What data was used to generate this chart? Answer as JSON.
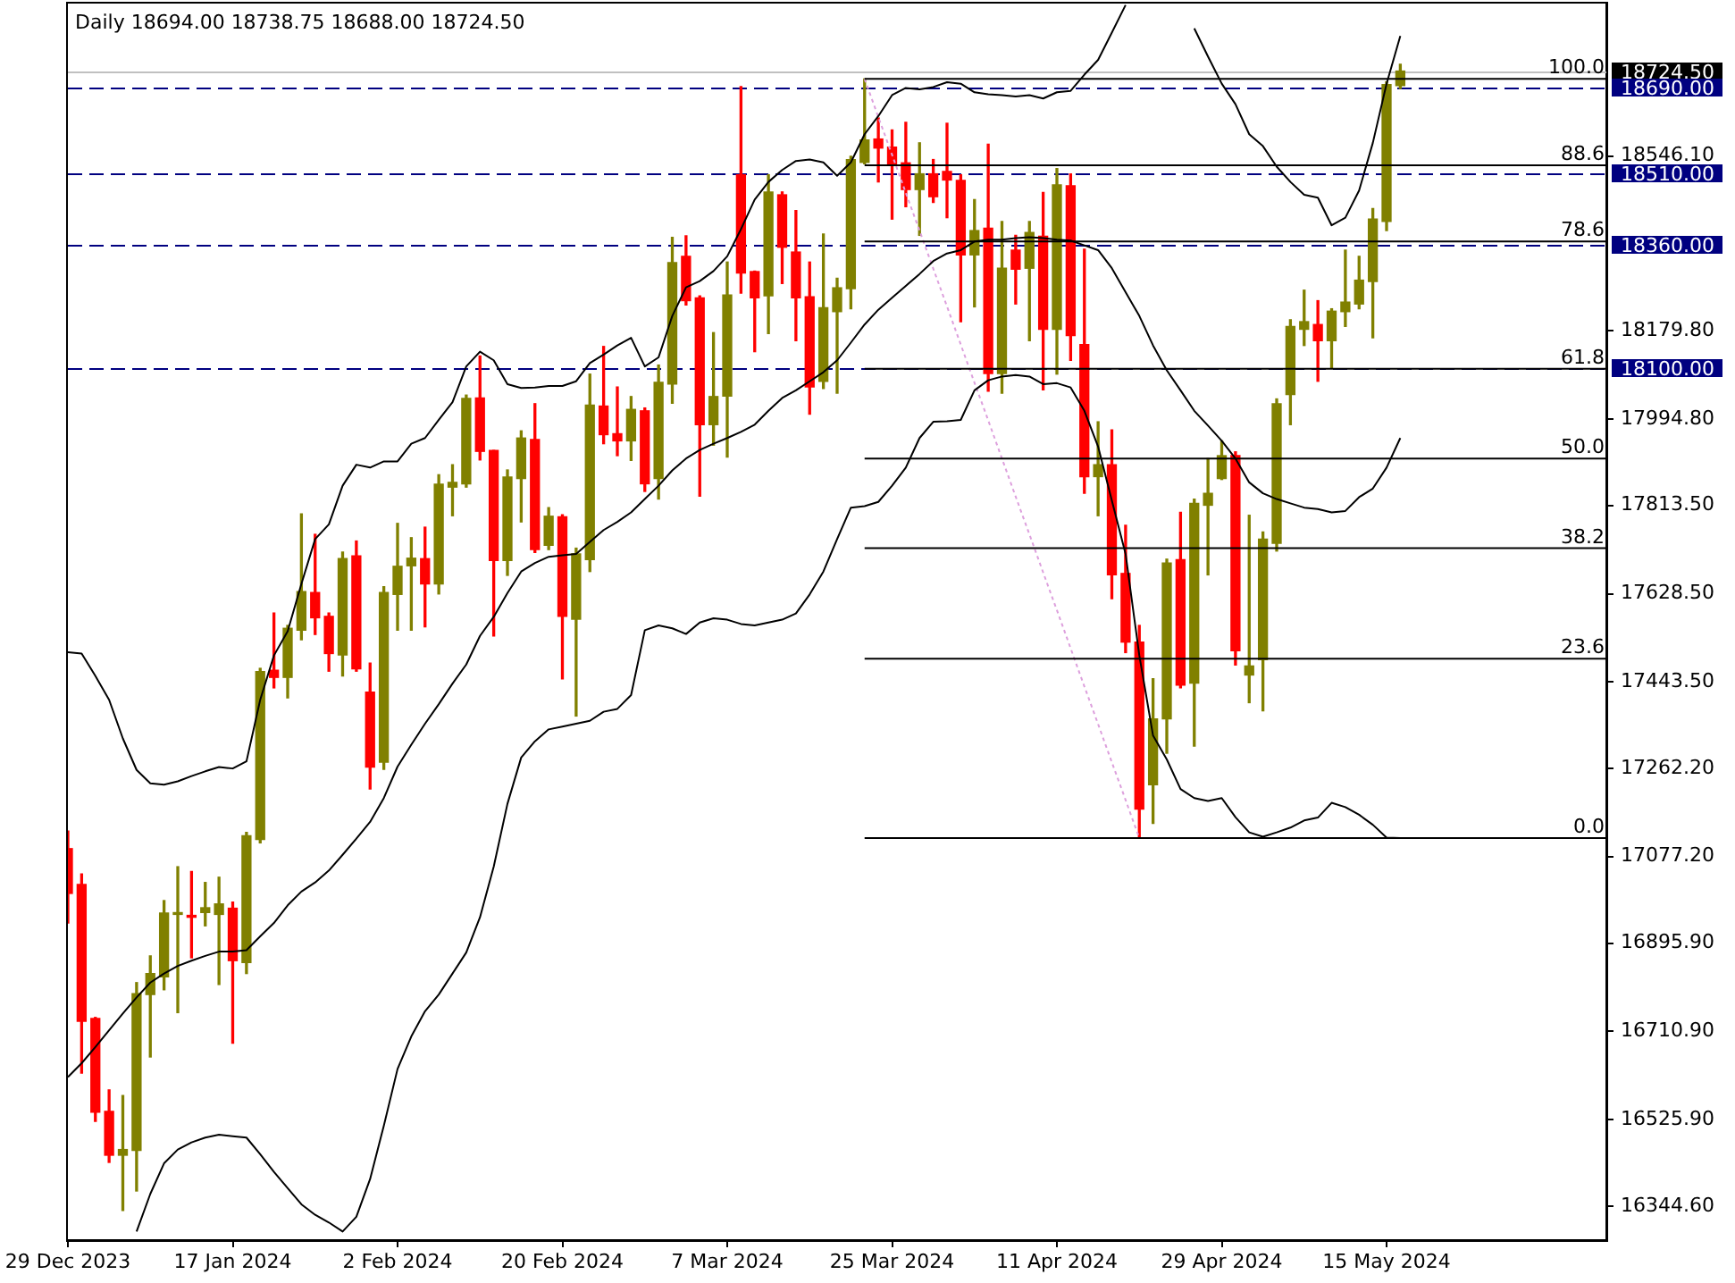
{
  "chart_data": {
    "type": "candlestick",
    "title": "Daily 18694.00 18738.75 18688.00 18724.50",
    "categories": [
      "29 Dec 2023",
      null,
      null,
      null,
      null,
      null,
      null,
      null,
      null,
      null,
      null,
      null,
      "17 Jan 2024",
      null,
      null,
      null,
      null,
      null,
      null,
      null,
      null,
      null,
      null,
      null,
      "2 Feb 2024",
      null,
      null,
      null,
      null,
      null,
      null,
      null,
      null,
      null,
      null,
      null,
      "20 Feb 2024",
      null,
      null,
      null,
      null,
      null,
      null,
      null,
      null,
      null,
      null,
      null,
      "7 Mar 2024",
      null,
      null,
      null,
      null,
      null,
      null,
      null,
      null,
      null,
      null,
      null,
      "25 Mar 2024",
      null,
      null,
      null,
      null,
      null,
      null,
      null,
      null,
      null,
      null,
      null,
      "11 Apr 2024",
      null,
      null,
      null,
      null,
      null,
      null,
      null,
      null,
      null,
      null,
      null,
      "29 Apr 2024",
      null,
      null,
      null,
      null,
      null,
      null,
      null,
      null,
      null,
      null,
      null,
      "15 May 2024",
      null,
      null,
      null,
      null,
      null,
      null,
      null,
      null,
      null,
      null,
      null,
      null,
      null,
      null,
      null,
      null
    ],
    "ohlc": [
      [
        17094,
        17131,
        16938,
        17000
      ],
      [
        17019,
        17041,
        16623,
        16732
      ],
      [
        16738,
        16740,
        16522,
        16541
      ],
      [
        16543,
        16588,
        16436,
        16451
      ],
      [
        16451,
        16576,
        16335,
        16463
      ],
      [
        16461,
        16813,
        16376,
        16790
      ],
      [
        16788,
        16869,
        16657,
        16832
      ],
      [
        16825,
        16985,
        16798,
        16959
      ],
      [
        16956,
        17056,
        16750,
        16959
      ],
      [
        16954,
        17046,
        16865,
        16950
      ],
      [
        16960,
        17023,
        16932,
        16970
      ],
      [
        16956,
        17034,
        16809,
        16978
      ],
      [
        16969,
        16982,
        16686,
        16859
      ],
      [
        16855,
        17128,
        16832,
        17121
      ],
      [
        17113,
        17472,
        17106,
        17465
      ],
      [
        17468,
        17588,
        17431,
        17453
      ],
      [
        17453,
        17562,
        17410,
        17556
      ],
      [
        17552,
        17796,
        17532,
        17633
      ],
      [
        17631,
        17753,
        17543,
        17578
      ],
      [
        17581,
        17588,
        17466,
        17503
      ],
      [
        17500,
        17716,
        17456,
        17702
      ],
      [
        17708,
        17739,
        17466,
        17471
      ],
      [
        17422,
        17483,
        17219,
        17265
      ],
      [
        17275,
        17643,
        17260,
        17631
      ],
      [
        17627,
        17776,
        17552,
        17686
      ],
      [
        17687,
        17746,
        17552,
        17703
      ],
      [
        17702,
        17768,
        17559,
        17649
      ],
      [
        17649,
        17878,
        17628,
        17858
      ],
      [
        17852,
        17899,
        17792,
        17862
      ],
      [
        17859,
        18045,
        17852,
        18038
      ],
      [
        18039,
        18127,
        17909,
        17927
      ],
      [
        17929,
        17929,
        17540,
        17698
      ],
      [
        17698,
        17888,
        17667,
        17873
      ],
      [
        17870,
        17970,
        17779,
        17955
      ],
      [
        17952,
        18027,
        17715,
        17721
      ],
      [
        17730,
        17809,
        17721,
        17791
      ],
      [
        17790,
        17794,
        17450,
        17581
      ],
      [
        17575,
        17724,
        17372,
        17712
      ],
      [
        17700,
        18089,
        17675,
        18024
      ],
      [
        18022,
        18147,
        17943,
        17962
      ],
      [
        17964,
        18062,
        17918,
        17949
      ],
      [
        17949,
        18042,
        17908,
        18015
      ],
      [
        18012,
        18018,
        17843,
        17859
      ],
      [
        17870,
        18108,
        17827,
        18072
      ],
      [
        18068,
        18376,
        18028,
        18323
      ],
      [
        18336,
        18379,
        18234,
        18243
      ],
      [
        18249,
        18253,
        17833,
        17983
      ],
      [
        17983,
        18176,
        17940,
        18042
      ],
      [
        18043,
        18324,
        17915,
        18255
      ],
      [
        18507,
        18692,
        18259,
        18301
      ],
      [
        18304,
        18305,
        18136,
        18249
      ],
      [
        18253,
        18507,
        18174,
        18471
      ],
      [
        18465,
        18471,
        18279,
        18355
      ],
      [
        18345,
        18432,
        18159,
        18249
      ],
      [
        18251,
        18324,
        18005,
        18062
      ],
      [
        18074,
        18383,
        18059,
        18228
      ],
      [
        18220,
        18290,
        18049,
        18270
      ],
      [
        18268,
        18546,
        18226,
        18539
      ],
      [
        18533,
        18708,
        18530,
        18580
      ],
      [
        18582,
        18626,
        18492,
        18563
      ],
      [
        18565,
        18601,
        18414,
        18529
      ],
      [
        18532,
        18617,
        18440,
        18476
      ],
      [
        18476,
        18574,
        18380,
        18509
      ],
      [
        18509,
        18539,
        18449,
        18461
      ],
      [
        18514,
        18615,
        18417,
        18496
      ],
      [
        18495,
        18507,
        18199,
        18339
      ],
      [
        18339,
        18455,
        18230,
        18390
      ],
      [
        18395,
        18571,
        18053,
        18090
      ],
      [
        18090,
        18409,
        18049,
        18311
      ],
      [
        18349,
        18380,
        18236,
        18309
      ],
      [
        18311,
        18409,
        18159,
        18386
      ],
      [
        18378,
        18470,
        18056,
        18183
      ],
      [
        18183,
        18520,
        18089,
        18486
      ],
      [
        18484,
        18509,
        18118,
        18170
      ],
      [
        18151,
        18351,
        17839,
        17874
      ],
      [
        17874,
        17989,
        17792,
        17899
      ],
      [
        17899,
        17972,
        17618,
        17668
      ],
      [
        17671,
        17772,
        17505,
        17527
      ],
      [
        17527,
        17562,
        17116,
        17177
      ],
      [
        17228,
        17450,
        17147,
        17366
      ],
      [
        17366,
        17701,
        17294,
        17693
      ],
      [
        17700,
        17799,
        17431,
        17437
      ],
      [
        17441,
        17827,
        17309,
        17818
      ],
      [
        17814,
        17912,
        17668,
        17839
      ],
      [
        17870,
        17949,
        17868,
        17918
      ],
      [
        17918,
        17926,
        17479,
        17509
      ],
      [
        17458,
        17793,
        17400,
        17477
      ],
      [
        17490,
        17758,
        17383,
        17743
      ],
      [
        17734,
        18037,
        17718,
        18027
      ],
      [
        18046,
        18203,
        17983,
        18189
      ],
      [
        18183,
        18265,
        18149,
        18199
      ],
      [
        18193,
        18243,
        18074,
        18159
      ],
      [
        18159,
        18226,
        18102,
        18221
      ],
      [
        18220,
        18349,
        18189,
        18240
      ],
      [
        18236,
        18336,
        18226,
        18286
      ],
      [
        18283,
        18436,
        18165,
        18414
      ],
      [
        18409,
        18702,
        18390,
        18696
      ],
      [
        18694,
        18738.75,
        18688,
        18724.5
      ],
      null,
      null,
      null,
      null,
      null,
      null,
      null,
      null,
      null,
      null,
      null,
      null,
      null,
      null,
      null
    ],
    "colors": [
      "#ff0000",
      "#ff0000",
      "#ff0000",
      "#ff0000",
      "#808000",
      "#808000",
      "#808000",
      "#808000",
      "#808000",
      "#ff0000",
      "#808000",
      "#808000",
      "#ff0000",
      "#808000",
      "#808000",
      "#ff0000",
      "#808000",
      "#808000",
      "#ff0000",
      "#ff0000",
      "#808000",
      "#ff0000",
      "#ff0000",
      "#808000",
      "#808000",
      "#808000",
      "#ff0000",
      "#808000",
      "#808000",
      "#808000",
      "#ff0000",
      "#ff0000",
      "#808000",
      "#808000",
      "#ff0000",
      "#808000",
      "#ff0000",
      "#808000",
      "#808000",
      "#ff0000",
      "#ff0000",
      "#808000",
      "#ff0000",
      "#808000",
      "#808000",
      "#ff0000",
      "#ff0000",
      "#808000",
      "#808000",
      "#ff0000",
      "#ff0000",
      "#808000",
      "#ff0000",
      "#ff0000",
      "#ff0000",
      "#808000",
      "#808000",
      "#808000",
      "#808000",
      "#ff0000",
      "#ff0000",
      "#ff0000",
      "#808000",
      "#ff0000",
      "#ff0000",
      "#ff0000",
      "#808000",
      "#ff0000",
      "#808000",
      "#ff0000",
      "#808000",
      "#ff0000",
      "#808000",
      "#ff0000",
      "#ff0000",
      "#808000",
      "#ff0000",
      "#ff0000",
      "#ff0000",
      "#808000",
      "#808000",
      "#ff0000",
      "#808000",
      "#808000",
      "#808000",
      "#ff0000",
      "#808000",
      "#808000",
      "#808000",
      "#808000",
      "#808000",
      "#ff0000",
      "#808000",
      "#808000",
      "#808000",
      "#808000",
      "#808000",
      "#808000",
      null,
      null,
      null,
      null,
      null,
      null,
      null,
      null,
      null,
      null,
      null,
      null,
      null,
      null,
      null
    ],
    "series": [
      {
        "type": "line",
        "color": "#000000",
        "values": [
          17506,
          17503,
          17456,
          17406,
          17325,
          17259,
          17231,
          17228,
          17235,
          17246,
          17256,
          17265,
          17262,
          17277,
          17406,
          17499,
          17550,
          17649,
          17743,
          17774,
          17855,
          17899,
          17893,
          17906,
          17906,
          17943,
          17955,
          17993,
          18030,
          18105,
          18136,
          18118,
          18068,
          18060,
          18061,
          18064,
          18064,
          18074,
          18112,
          18130,
          18149,
          18165,
          18105,
          18124,
          18211,
          18271,
          18284,
          18305,
          18336,
          18393,
          18455,
          18492,
          18517,
          18536,
          18539,
          18533,
          18505,
          18533,
          18592,
          18630,
          18674,
          18689,
          18686,
          18691,
          18701,
          18698,
          18680,
          18676,
          18674,
          18671,
          18674,
          18667,
          18680,
          18683,
          18717,
          18748,
          18805,
          18863,
          null,
          null,
          null,
          null,
          18814,
          18755,
          18698,
          18655,
          18592,
          18567,
          18524,
          18492,
          18465,
          18459,
          18401,
          18417,
          18474,
          18574,
          18698,
          18798,
          null,
          null,
          null,
          null,
          null,
          null,
          null,
          null,
          null,
          null,
          null,
          null,
          null,
          null,
          null
        ]
      },
      {
        "type": "line",
        "color": "#000000",
        "values": [
          16615,
          16644,
          16678,
          16713,
          16748,
          16782,
          16813,
          16832,
          16848,
          16859,
          16869,
          16878,
          16878,
          16881,
          16910,
          16938,
          16975,
          17004,
          17023,
          17048,
          17081,
          17115,
          17150,
          17200,
          17266,
          17312,
          17356,
          17397,
          17440,
          17480,
          17540,
          17580,
          17630,
          17675,
          17693,
          17706,
          17709,
          17712,
          17737,
          17762,
          17779,
          17799,
          17827,
          17855,
          17887,
          17912,
          17930,
          17943,
          17955,
          17968,
          17983,
          18012,
          18039,
          18055,
          18074,
          18093,
          18118,
          18155,
          18193,
          18224,
          18249,
          18274,
          18299,
          18326,
          18342,
          18349,
          18367,
          18371,
          18371,
          18374,
          18376,
          18374,
          18371,
          18369,
          18359,
          18349,
          18311,
          18261,
          18211,
          18149,
          18097,
          18055,
          18012,
          17981,
          17949,
          17912,
          17862,
          17839,
          17827,
          17818,
          17809,
          17806,
          17799,
          17802,
          17831,
          17849,
          17893,
          17955,
          null,
          null,
          null,
          null,
          null,
          null,
          null,
          null,
          null,
          null,
          null,
          null,
          null,
          null,
          null
        ]
      },
      {
        "type": "line",
        "color": "#000000",
        "values": [
          null,
          null,
          null,
          null,
          null,
          16291,
          16370,
          16434,
          16463,
          16478,
          16488,
          16494,
          16491,
          16488,
          16453,
          16416,
          16382,
          16348,
          16326,
          16310,
          16291,
          16322,
          16401,
          16513,
          16632,
          16700,
          16753,
          16788,
          16832,
          16876,
          16950,
          17056,
          17188,
          17285,
          17319,
          17344,
          17350,
          17356,
          17362,
          17381,
          17387,
          17416,
          17552,
          17562,
          17556,
          17544,
          17568,
          17577,
          17574,
          17565,
          17562,
          17568,
          17574,
          17587,
          17627,
          17675,
          17743,
          17809,
          17812,
          17821,
          17855,
          17893,
          17955,
          17989,
          17990,
          17993,
          18055,
          18076,
          18084,
          18087,
          18084,
          18068,
          18070,
          18061,
          18012,
          17937,
          17824,
          17712,
          17499,
          17331,
          17281,
          17219,
          17200,
          17194,
          17200,
          17160,
          17128,
          17119,
          17128,
          17138,
          17153,
          17159,
          17190,
          17181,
          17165,
          17144,
          17117,
          17116,
          null,
          null,
          null,
          null,
          null,
          null,
          null,
          null,
          null,
          null,
          null,
          null,
          null,
          null,
          null
        ]
      },
      {
        "type": "line",
        "color": "#000000",
        "line_style": "solid",
        "values": [
          null,
          null,
          null,
          null,
          null,
          null,
          null,
          null,
          null,
          null,
          null,
          null,
          null,
          null,
          null,
          null,
          null,
          null,
          null,
          null,
          null,
          null,
          null,
          null,
          null,
          null,
          null,
          null,
          null,
          null,
          null,
          null,
          null,
          null,
          null,
          null,
          null,
          null,
          null,
          null,
          null,
          null,
          null,
          null,
          null,
          null,
          null,
          null,
          null,
          null,
          null,
          null,
          null,
          null,
          null,
          null,
          null,
          null,
          18708,
          18708,
          18708,
          18708,
          18708,
          18708,
          18708,
          18708,
          18708,
          18708,
          18708,
          18708,
          18708,
          18708,
          18708,
          18708,
          18708,
          18708,
          18708,
          18708,
          18708,
          18708,
          18708,
          18708,
          18708,
          18708,
          18708,
          18708,
          18708,
          18708,
          18708,
          18708,
          18708,
          18708,
          18708,
          18708,
          18708,
          18708,
          18708,
          18708,
          18708,
          18708,
          18708,
          18708,
          18708,
          18708,
          18708,
          18708,
          18708,
          18708,
          18708,
          18708,
          18708,
          18708,
          18708
        ]
      },
      {
        "type": "line",
        "color": "#000000",
        "line_style": "solid",
        "values": [
          null,
          null,
          null,
          null,
          null,
          null,
          null,
          null,
          null,
          null,
          null,
          null,
          null,
          null,
          null,
          null,
          null,
          null,
          null,
          null,
          null,
          null,
          null,
          null,
          null,
          null,
          null,
          null,
          null,
          null,
          null,
          null,
          null,
          null,
          null,
          null,
          null,
          null,
          null,
          null,
          null,
          null,
          null,
          null,
          null,
          null,
          null,
          null,
          null,
          null,
          null,
          null,
          null,
          null,
          null,
          null,
          null,
          null,
          18527,
          18527,
          18527,
          18527,
          18527,
          18527,
          18527,
          18527,
          18527,
          18527,
          18527,
          18527,
          18527,
          18527,
          18527,
          18527,
          18527,
          18527,
          18527,
          18527,
          18527,
          18527,
          18527,
          18527,
          18527,
          18527,
          18527,
          18527,
          18527,
          18527,
          18527,
          18527,
          18527,
          18527,
          18527,
          18527,
          18527,
          18527,
          18527,
          18527,
          18527,
          18527,
          18527,
          18527,
          18527,
          18527,
          18527,
          18527,
          18527,
          18527,
          18527,
          18527,
          18527,
          18527,
          18527
        ]
      },
      {
        "type": "line",
        "color": "#000000",
        "line_style": "solid",
        "values": [
          null,
          null,
          null,
          null,
          null,
          null,
          null,
          null,
          null,
          null,
          null,
          null,
          null,
          null,
          null,
          null,
          null,
          null,
          null,
          null,
          null,
          null,
          null,
          null,
          null,
          null,
          null,
          null,
          null,
          null,
          null,
          null,
          null,
          null,
          null,
          null,
          null,
          null,
          null,
          null,
          null,
          null,
          null,
          null,
          null,
          null,
          null,
          null,
          null,
          null,
          null,
          null,
          null,
          null,
          null,
          null,
          null,
          null,
          18367,
          18367,
          18367,
          18367,
          18367,
          18367,
          18367,
          18367,
          18367,
          18367,
          18367,
          18367,
          18367,
          18367,
          18367,
          18367,
          18367,
          18367,
          18367,
          18367,
          18367,
          18367,
          18367,
          18367,
          18367,
          18367,
          18367,
          18367,
          18367,
          18367,
          18367,
          18367,
          18367,
          18367,
          18367,
          18367,
          18367,
          18367,
          18367,
          18367,
          18367,
          18367,
          18367,
          18367,
          18367,
          18367,
          18367,
          18367,
          18367,
          18367,
          18367,
          18367,
          18367,
          18367,
          18367
        ]
      },
      {
        "type": "line",
        "color": "#000000",
        "line_style": "solid",
        "values": [
          null,
          null,
          null,
          null,
          null,
          null,
          null,
          null,
          null,
          null,
          null,
          null,
          null,
          null,
          null,
          null,
          null,
          null,
          null,
          null,
          null,
          null,
          null,
          null,
          null,
          null,
          null,
          null,
          null,
          null,
          null,
          null,
          null,
          null,
          null,
          null,
          null,
          null,
          null,
          null,
          null,
          null,
          null,
          null,
          null,
          null,
          null,
          null,
          null,
          null,
          null,
          null,
          null,
          null,
          null,
          null,
          null,
          null,
          18100,
          18100,
          18100,
          18100,
          18100,
          18100,
          18100,
          18100,
          18100,
          18100,
          18100,
          18100,
          18100,
          18100,
          18100,
          18100,
          18100,
          18100,
          18100,
          18100,
          18100,
          18100,
          18100,
          18100,
          18100,
          18100,
          18100,
          18100,
          18100,
          18100,
          18100,
          18100,
          18100,
          18100,
          18100,
          18100,
          18100,
          18100,
          18100,
          18100,
          18100,
          18100,
          18100,
          18100,
          18100,
          18100,
          18100,
          18100,
          18100,
          18100,
          18100,
          18100,
          18100,
          18100,
          18100
        ]
      },
      {
        "type": "line",
        "color": "#000000",
        "line_style": "solid",
        "values": [
          null,
          null,
          null,
          null,
          null,
          null,
          null,
          null,
          null,
          null,
          null,
          null,
          null,
          null,
          null,
          null,
          null,
          null,
          null,
          null,
          null,
          null,
          null,
          null,
          null,
          null,
          null,
          null,
          null,
          null,
          null,
          null,
          null,
          null,
          null,
          null,
          null,
          null,
          null,
          null,
          null,
          null,
          null,
          null,
          null,
          null,
          null,
          null,
          null,
          null,
          null,
          null,
          null,
          null,
          null,
          null,
          null,
          null,
          17912,
          17912,
          17912,
          17912,
          17912,
          17912,
          17912,
          17912,
          17912,
          17912,
          17912,
          17912,
          17912,
          17912,
          17912,
          17912,
          17912,
          17912,
          17912,
          17912,
          17912,
          17912,
          17912,
          17912,
          17912,
          17912,
          17912,
          17912,
          17912,
          17912,
          17912,
          17912,
          17912,
          17912,
          17912,
          17912,
          17912,
          17912,
          17912,
          17912,
          17912,
          17912,
          17912,
          17912,
          17912,
          17912,
          17912,
          17912,
          17912,
          17912,
          17912,
          17912,
          17912,
          17912,
          17912
        ]
      },
      {
        "type": "line",
        "color": "#000000",
        "line_style": "solid",
        "values": [
          null,
          null,
          null,
          null,
          null,
          null,
          null,
          null,
          null,
          null,
          null,
          null,
          null,
          null,
          null,
          null,
          null,
          null,
          null,
          null,
          null,
          null,
          null,
          null,
          null,
          null,
          null,
          null,
          null,
          null,
          null,
          null,
          null,
          null,
          null,
          null,
          null,
          null,
          null,
          null,
          null,
          null,
          null,
          null,
          null,
          null,
          null,
          null,
          null,
          null,
          null,
          null,
          null,
          null,
          null,
          null,
          null,
          null,
          17724,
          17724,
          17724,
          17724,
          17724,
          17724,
          17724,
          17724,
          17724,
          17724,
          17724,
          17724,
          17724,
          17724,
          17724,
          17724,
          17724,
          17724,
          17724,
          17724,
          17724,
          17724,
          17724,
          17724,
          17724,
          17724,
          17724,
          17724,
          17724,
          17724,
          17724,
          17724,
          17724,
          17724,
          17724,
          17724,
          17724,
          17724,
          17724,
          17724,
          17724,
          17724,
          17724,
          17724,
          17724,
          17724,
          17724,
          17724,
          17724,
          17724,
          17724,
          17724,
          17724,
          17724,
          17724
        ]
      },
      {
        "type": "line",
        "color": "#000000",
        "line_style": "solid",
        "values": [
          null,
          null,
          null,
          null,
          null,
          null,
          null,
          null,
          null,
          null,
          null,
          null,
          null,
          null,
          null,
          null,
          null,
          null,
          null,
          null,
          null,
          null,
          null,
          null,
          null,
          null,
          null,
          null,
          null,
          null,
          null,
          null,
          null,
          null,
          null,
          null,
          null,
          null,
          null,
          null,
          null,
          null,
          null,
          null,
          null,
          null,
          null,
          null,
          null,
          null,
          null,
          null,
          null,
          null,
          null,
          null,
          null,
          null,
          17492,
          17492,
          17492,
          17492,
          17492,
          17492,
          17492,
          17492,
          17492,
          17492,
          17492,
          17492,
          17492,
          17492,
          17492,
          17492,
          17492,
          17492,
          17492,
          17492,
          17492,
          17492,
          17492,
          17492,
          17492,
          17492,
          17492,
          17492,
          17492,
          17492,
          17492,
          17492,
          17492,
          17492,
          17492,
          17492,
          17492,
          17492,
          17492,
          17492,
          17492,
          17492,
          17492,
          17492,
          17492,
          17492,
          17492,
          17492,
          17492,
          17492,
          17492,
          17492,
          17492,
          17492,
          17492
        ]
      },
      {
        "type": "line",
        "color": "#000000",
        "line_style": "solid",
        "values": [
          null,
          null,
          null,
          null,
          null,
          null,
          null,
          null,
          null,
          null,
          null,
          null,
          null,
          null,
          null,
          null,
          null,
          null,
          null,
          null,
          null,
          null,
          null,
          null,
          null,
          null,
          null,
          null,
          null,
          null,
          null,
          null,
          null,
          null,
          null,
          null,
          null,
          null,
          null,
          null,
          null,
          null,
          null,
          null,
          null,
          null,
          null,
          null,
          null,
          null,
          null,
          null,
          null,
          null,
          null,
          null,
          null,
          null,
          17116,
          17116,
          17116,
          17116,
          17116,
          17116,
          17116,
          17116,
          17116,
          17116,
          17116,
          17116,
          17116,
          17116,
          17116,
          17116,
          17116,
          17116,
          17116,
          17116,
          17116,
          17116,
          17116,
          17116,
          17116,
          17116,
          17116,
          17116,
          17116,
          17116,
          17116,
          17116,
          17116,
          17116,
          17116,
          17116,
          17116,
          17116,
          17116,
          17116,
          17116,
          17116,
          17116,
          17116,
          17116,
          17116,
          17116,
          17116,
          17116,
          17116,
          17116,
          17116,
          17116,
          17116,
          17116
        ]
      },
      {
        "type": "line",
        "color": "#dda0dd",
        "line_style": "dotted",
        "values": [
          null,
          null,
          null,
          null,
          null,
          null,
          null,
          null,
          null,
          null,
          null,
          null,
          null,
          null,
          null,
          null,
          null,
          null,
          null,
          null,
          null,
          null,
          null,
          null,
          null,
          null,
          null,
          null,
          null,
          null,
          null,
          null,
          null,
          null,
          null,
          null,
          null,
          null,
          null,
          null,
          null,
          null,
          null,
          null,
          null,
          null,
          null,
          null,
          null,
          null,
          null,
          null,
          null,
          null,
          null,
          null,
          null,
          null,
          18708,
          18628,
          18549,
          18469,
          18390,
          18310,
          18231,
          18151,
          18071,
          17992,
          17912,
          17832,
          17753,
          17673,
          17594,
          17514,
          17434,
          17355,
          17275,
          17196,
          17116,
          null,
          null,
          null,
          null,
          null,
          null,
          null,
          null,
          null,
          null,
          null,
          null,
          null,
          null,
          null,
          null,
          null,
          null,
          null,
          null,
          null,
          null,
          null,
          null,
          null,
          null,
          null,
          null,
          null,
          null,
          null,
          null,
          null,
          null
        ]
      }
    ],
    "annotations": [
      {
        "text": "100.0",
        "y": 18708
      },
      {
        "text": "88.6",
        "y": 18527
      },
      {
        "text": "78.6",
        "y": 18367
      },
      {
        "text": "61.8",
        "y": 18100
      },
      {
        "text": "50.0",
        "y": 17912
      },
      {
        "text": "38.2",
        "y": 17724
      },
      {
        "text": "23.6",
        "y": 17492
      },
      {
        "text": "0.0",
        "y": 17116
      }
    ],
    "ylim": [
      16273,
      18866
    ],
    "yticks": [
      {
        "value": 16344.6,
        "label": "16344.60"
      },
      {
        "value": 16525.9,
        "label": "16525.90"
      },
      {
        "value": 16710.9,
        "label": "16710.90"
      },
      {
        "value": 16895.9,
        "label": "16895.90"
      },
      {
        "value": 17077.2,
        "label": "17077.20"
      },
      {
        "value": 17262.2,
        "label": "17262.20"
      },
      {
        "value": 17443.5,
        "label": "17443.50"
      },
      {
        "value": 17628.5,
        "label": "17628.50"
      },
      {
        "value": 17813.5,
        "label": "17813.50"
      },
      {
        "value": 17994.8,
        "label": "17994.80"
      },
      {
        "value": 18179.8,
        "label": "18179.80"
      },
      {
        "value": 18546.1,
        "label": "18546.10"
      }
    ],
    "ref_lines": [
      {
        "axis": "y",
        "value": 18724.5,
        "label": "18724.50",
        "color": "#c0c0c0",
        "line_style": "solid"
      },
      {
        "axis": "y",
        "value": 18690,
        "label": "18690.00",
        "color": "#000080",
        "line_style": "dashed"
      },
      {
        "axis": "y",
        "value": 18510,
        "label": "18510.00",
        "color": "#000080",
        "line_style": "dashed"
      },
      {
        "axis": "y",
        "value": 18360,
        "label": "18360.00",
        "color": "#000080",
        "line_style": "dashed"
      },
      {
        "axis": "y",
        "value": 18100,
        "label": "18100.00",
        "color": "#000080",
        "line_style": "dashed"
      }
    ]
  }
}
